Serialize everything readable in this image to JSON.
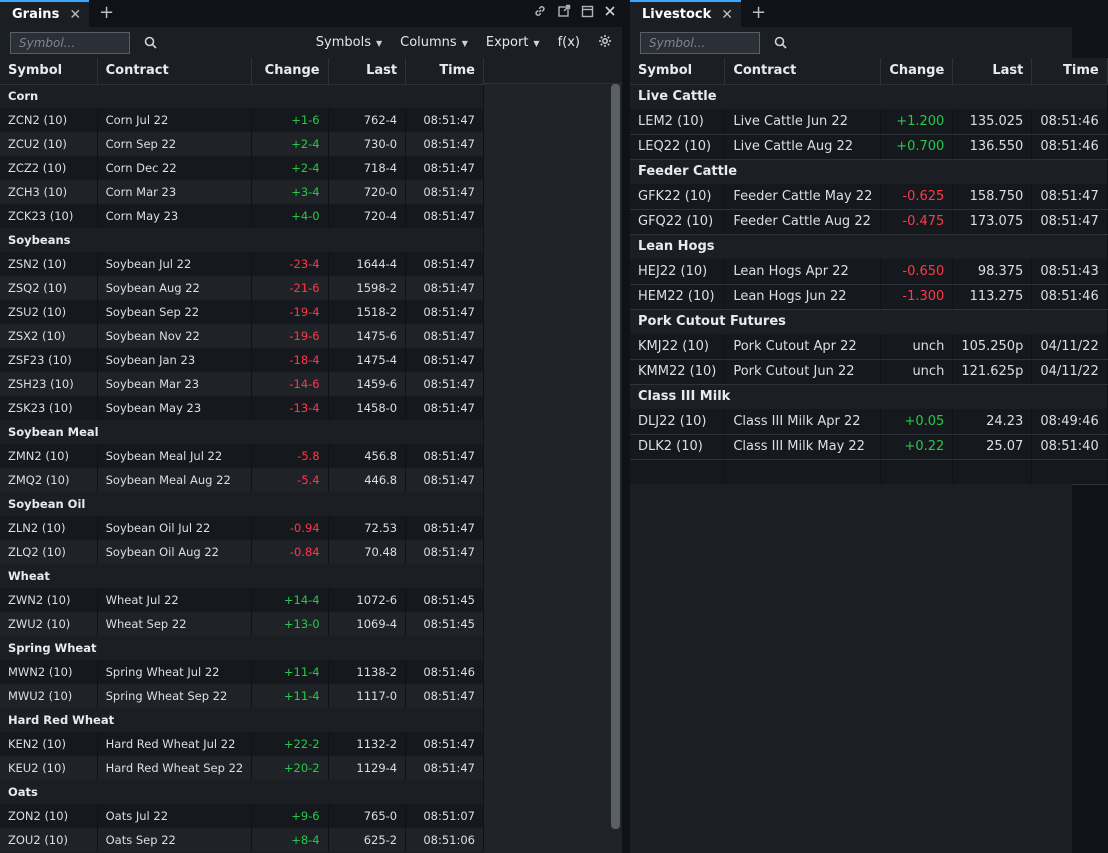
{
  "grains": {
    "tab_label": "Grains",
    "symbol_placeholder": "Symbol...",
    "menus": {
      "symbols": "Symbols",
      "columns": "Columns",
      "export": "Export",
      "fx": "f(x)"
    },
    "columns": [
      "Symbol",
      "Contract",
      "Change",
      "Last",
      "Time"
    ],
    "groups": [
      {
        "name": "Corn",
        "rows": [
          {
            "symbol": "ZCN2 (10)",
            "contract": "Corn Jul 22",
            "change": "+1-6",
            "dir": "pos",
            "last": "762-4",
            "time": "08:51:47"
          },
          {
            "symbol": "ZCU2 (10)",
            "contract": "Corn Sep 22",
            "change": "+2-4",
            "dir": "pos",
            "last": "730-0",
            "time": "08:51:47"
          },
          {
            "symbol": "ZCZ2 (10)",
            "contract": "Corn Dec 22",
            "change": "+2-4",
            "dir": "pos",
            "last": "718-4",
            "time": "08:51:47"
          },
          {
            "symbol": "ZCH3 (10)",
            "contract": "Corn Mar 23",
            "change": "+3-4",
            "dir": "pos",
            "last": "720-0",
            "time": "08:51:47"
          },
          {
            "symbol": "ZCK23 (10)",
            "contract": "Corn May 23",
            "change": "+4-0",
            "dir": "pos",
            "last": "720-4",
            "time": "08:51:47"
          }
        ]
      },
      {
        "name": "Soybeans",
        "rows": [
          {
            "symbol": "ZSN2 (10)",
            "contract": "Soybean Jul 22",
            "change": "-23-4",
            "dir": "neg",
            "last": "1644-4",
            "time": "08:51:47"
          },
          {
            "symbol": "ZSQ2 (10)",
            "contract": "Soybean Aug 22",
            "change": "-21-6",
            "dir": "neg",
            "last": "1598-2",
            "time": "08:51:47"
          },
          {
            "symbol": "ZSU2 (10)",
            "contract": "Soybean Sep 22",
            "change": "-19-4",
            "dir": "neg",
            "last": "1518-2",
            "time": "08:51:47"
          },
          {
            "symbol": "ZSX2 (10)",
            "contract": "Soybean Nov 22",
            "change": "-19-6",
            "dir": "neg",
            "last": "1475-6",
            "time": "08:51:47"
          },
          {
            "symbol": "ZSF23 (10)",
            "contract": "Soybean Jan 23",
            "change": "-18-4",
            "dir": "neg",
            "last": "1475-4",
            "time": "08:51:47"
          },
          {
            "symbol": "ZSH23 (10)",
            "contract": "Soybean Mar 23",
            "change": "-14-6",
            "dir": "neg",
            "last": "1459-6",
            "time": "08:51:47"
          },
          {
            "symbol": "ZSK23 (10)",
            "contract": "Soybean May 23",
            "change": "-13-4",
            "dir": "neg",
            "last": "1458-0",
            "time": "08:51:47"
          }
        ]
      },
      {
        "name": "Soybean Meal",
        "rows": [
          {
            "symbol": "ZMN2 (10)",
            "contract": "Soybean Meal Jul 22",
            "change": "-5.8",
            "dir": "neg",
            "last": "456.8",
            "time": "08:51:47"
          },
          {
            "symbol": "ZMQ2 (10)",
            "contract": "Soybean Meal Aug 22",
            "change": "-5.4",
            "dir": "neg",
            "last": "446.8",
            "time": "08:51:47"
          }
        ]
      },
      {
        "name": "Soybean Oil",
        "rows": [
          {
            "symbol": "ZLN2 (10)",
            "contract": "Soybean Oil Jul 22",
            "change": "-0.94",
            "dir": "neg",
            "last": "72.53",
            "time": "08:51:47"
          },
          {
            "symbol": "ZLQ2 (10)",
            "contract": "Soybean Oil Aug 22",
            "change": "-0.84",
            "dir": "neg",
            "last": "70.48",
            "time": "08:51:47"
          }
        ]
      },
      {
        "name": "Wheat",
        "rows": [
          {
            "symbol": "ZWN2 (10)",
            "contract": "Wheat Jul 22",
            "change": "+14-4",
            "dir": "pos",
            "last": "1072-6",
            "time": "08:51:45"
          },
          {
            "symbol": "ZWU2 (10)",
            "contract": "Wheat Sep 22",
            "change": "+13-0",
            "dir": "pos",
            "last": "1069-4",
            "time": "08:51:45"
          }
        ]
      },
      {
        "name": "Spring Wheat",
        "rows": [
          {
            "symbol": "MWN2 (10)",
            "contract": "Spring Wheat Jul 22",
            "change": "+11-4",
            "dir": "pos",
            "last": "1138-2",
            "time": "08:51:46"
          },
          {
            "symbol": "MWU2 (10)",
            "contract": "Spring Wheat Sep 22",
            "change": "+11-4",
            "dir": "pos",
            "last": "1117-0",
            "time": "08:51:47"
          }
        ]
      },
      {
        "name": "Hard Red Wheat",
        "rows": [
          {
            "symbol": "KEN2 (10)",
            "contract": "Hard Red Wheat Jul 22",
            "change": "+22-2",
            "dir": "pos",
            "last": "1132-2",
            "time": "08:51:47"
          },
          {
            "symbol": "KEU2 (10)",
            "contract": "Hard Red Wheat Sep 22",
            "change": "+20-2",
            "dir": "pos",
            "last": "1129-4",
            "time": "08:51:47"
          }
        ]
      },
      {
        "name": "Oats",
        "rows": [
          {
            "symbol": "ZON2 (10)",
            "contract": "Oats Jul 22",
            "change": "+9-6",
            "dir": "pos",
            "last": "765-0",
            "time": "08:51:07"
          },
          {
            "symbol": "ZOU2 (10)",
            "contract": "Oats Sep 22",
            "change": "+8-4",
            "dir": "pos",
            "last": "625-2",
            "time": "08:51:06"
          }
        ]
      }
    ]
  },
  "livestock": {
    "tab_label": "Livestock",
    "symbol_placeholder": "Symbol...",
    "columns": [
      "Symbol",
      "Contract",
      "Change",
      "Last",
      "Time"
    ],
    "groups": [
      {
        "name": "Live Cattle",
        "rows": [
          {
            "symbol": "LEM2 (10)",
            "contract": "Live Cattle Jun 22",
            "change": "+1.200",
            "dir": "pos",
            "last": "135.025",
            "time": "08:51:46"
          },
          {
            "symbol": "LEQ22 (10)",
            "contract": "Live Cattle Aug 22",
            "change": "+0.700",
            "dir": "pos",
            "last": "136.550",
            "time": "08:51:46"
          }
        ]
      },
      {
        "name": "Feeder Cattle",
        "rows": [
          {
            "symbol": "GFK22 (10)",
            "contract": "Feeder Cattle May 22",
            "change": "-0.625",
            "dir": "neg",
            "last": "158.750",
            "time": "08:51:47"
          },
          {
            "symbol": "GFQ22 (10)",
            "contract": "Feeder Cattle Aug 22",
            "change": "-0.475",
            "dir": "neg",
            "last": "173.075",
            "time": "08:51:47"
          }
        ]
      },
      {
        "name": "Lean Hogs",
        "rows": [
          {
            "symbol": "HEJ22 (10)",
            "contract": "Lean Hogs Apr 22",
            "change": "-0.650",
            "dir": "neg",
            "last": "98.375",
            "time": "08:51:43"
          },
          {
            "symbol": "HEM22 (10)",
            "contract": "Lean Hogs Jun 22",
            "change": "-1.300",
            "dir": "neg",
            "last": "113.275",
            "time": "08:51:46"
          }
        ]
      },
      {
        "name": "Pork Cutout Futures",
        "rows": [
          {
            "symbol": "KMJ22 (10)",
            "contract": "Pork Cutout Apr 22",
            "change": "unch",
            "dir": "unch",
            "last": "105.250p",
            "time": "04/11/22"
          },
          {
            "symbol": "KMM22 (10)",
            "contract": "Pork Cutout Jun 22",
            "change": "unch",
            "dir": "unch",
            "last": "121.625p",
            "time": "04/11/22"
          }
        ]
      },
      {
        "name": "Class III Milk",
        "rows": [
          {
            "symbol": "DLJ22 (10)",
            "contract": "Class III Milk Apr 22",
            "change": "+0.05",
            "dir": "pos",
            "last": "24.23",
            "time": "08:49:46"
          },
          {
            "symbol": "DLK2 (10)",
            "contract": "Class III Milk May 22",
            "change": "+0.22",
            "dir": "pos",
            "last": "25.07",
            "time": "08:51:40"
          }
        ]
      }
    ]
  },
  "colors": {
    "accent": "#3ea6ff",
    "positive": "#27c84a",
    "negative": "#ff3848"
  },
  "icons": [
    "close-icon",
    "plus-icon",
    "search-icon",
    "link-icon",
    "popout-icon",
    "maximize-icon",
    "settings-icon",
    "caret-down-icon"
  ]
}
